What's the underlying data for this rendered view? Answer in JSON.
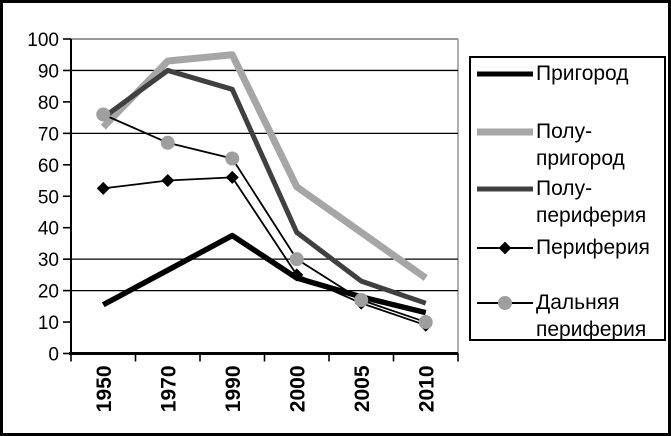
{
  "figure": {
    "background": "#ffffff",
    "border_color": "#000000"
  },
  "chart_data": {
    "type": "line",
    "title": "",
    "xlabel": "",
    "ylabel": "",
    "categories": [
      "1950",
      "1970",
      "1990",
      "2000",
      "2005",
      "2010"
    ],
    "series": [
      {
        "id": "prigorod",
        "name": "Пригород",
        "values": [
          15.5,
          26.5,
          37.5,
          24,
          18,
          13
        ],
        "color": "#000000",
        "width": 5.5,
        "marker": "none",
        "marker_color": "#000000"
      },
      {
        "id": "polu-prigorod",
        "name": "Полу-пригород",
        "values": [
          72,
          93,
          95,
          53,
          38.5,
          24
        ],
        "color": "#a6a6a6",
        "width": 7,
        "marker": "none",
        "marker_color": "#a6a6a6"
      },
      {
        "id": "polu-periferiya",
        "name": "Полу-периферия",
        "values": [
          75,
          90,
          84,
          38.5,
          23,
          16
        ],
        "color": "#404040",
        "width": 5,
        "marker": "none",
        "marker_color": "#404040"
      },
      {
        "id": "periferiya",
        "name": "Периферия",
        "values": [
          52.5,
          55,
          56,
          25,
          16,
          9
        ],
        "color": "#000000",
        "width": 1.8,
        "marker": "diamond",
        "marker_color": "#000000"
      },
      {
        "id": "dalnyaya-periferiya",
        "name": "Дальняя периферия",
        "values": [
          76,
          67,
          62,
          30,
          17,
          10
        ],
        "color": "#000000",
        "width": 1.8,
        "marker": "circle",
        "marker_color": "#9f9f9f"
      }
    ],
    "ylim": [
      0,
      100
    ],
    "ytick_step": 10,
    "y_tick_labels": [
      "0",
      "10",
      "20",
      "30",
      "40",
      "50",
      "60",
      "70",
      "80",
      "90",
      "100"
    ],
    "gridline_values": [
      90,
      70,
      30,
      20
    ],
    "grid_color": "#000000",
    "axis_color": "#000000",
    "plot_border_color": "#999999",
    "legend_position": "right",
    "x_labels_rotated_degrees": -90
  },
  "legend": {
    "items": [
      {
        "lines": {
          "0": "Пригород"
        }
      },
      {
        "lines": {
          "0": "Полу-",
          "1": "пригород"
        }
      },
      {
        "lines": {
          "0": "Полу-",
          "1": "периферия"
        }
      },
      {
        "lines": {
          "0": "Периферия"
        }
      },
      {
        "lines": {
          "0": "Дальняя",
          "1": "периферия"
        }
      }
    ]
  }
}
